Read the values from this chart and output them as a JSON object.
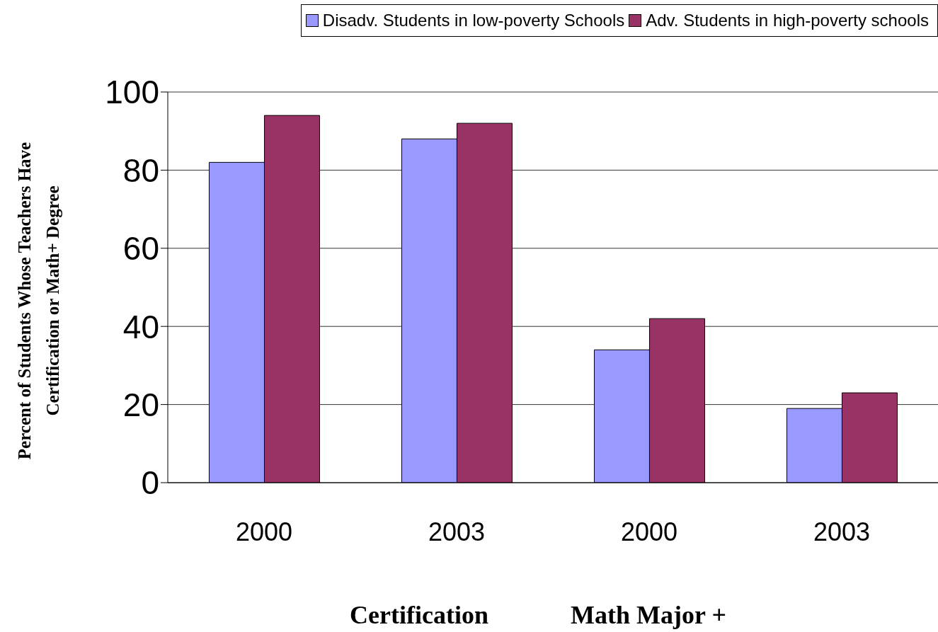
{
  "chart_data": {
    "type": "bar",
    "ylabel": "Percent of Students Whose Teachers Have Certification or Math+ Degree",
    "categories": [
      "2000",
      "2003",
      "2000",
      "2003"
    ],
    "series": [
      {
        "name": "Disadv. Students in low-poverty Schools",
        "color": "#9999ff",
        "values": [
          82,
          88,
          34,
          19
        ]
      },
      {
        "name": "Adv. Students in high-poverty schools",
        "color": "#993366",
        "values": [
          94,
          92,
          42,
          23
        ]
      }
    ],
    "ylim": [
      0,
      100
    ],
    "yticks": [
      0,
      20,
      40,
      60,
      80,
      100
    ],
    "grid": "y",
    "legend": "top right",
    "annotations": [
      "Certification",
      "Math Major +"
    ]
  }
}
